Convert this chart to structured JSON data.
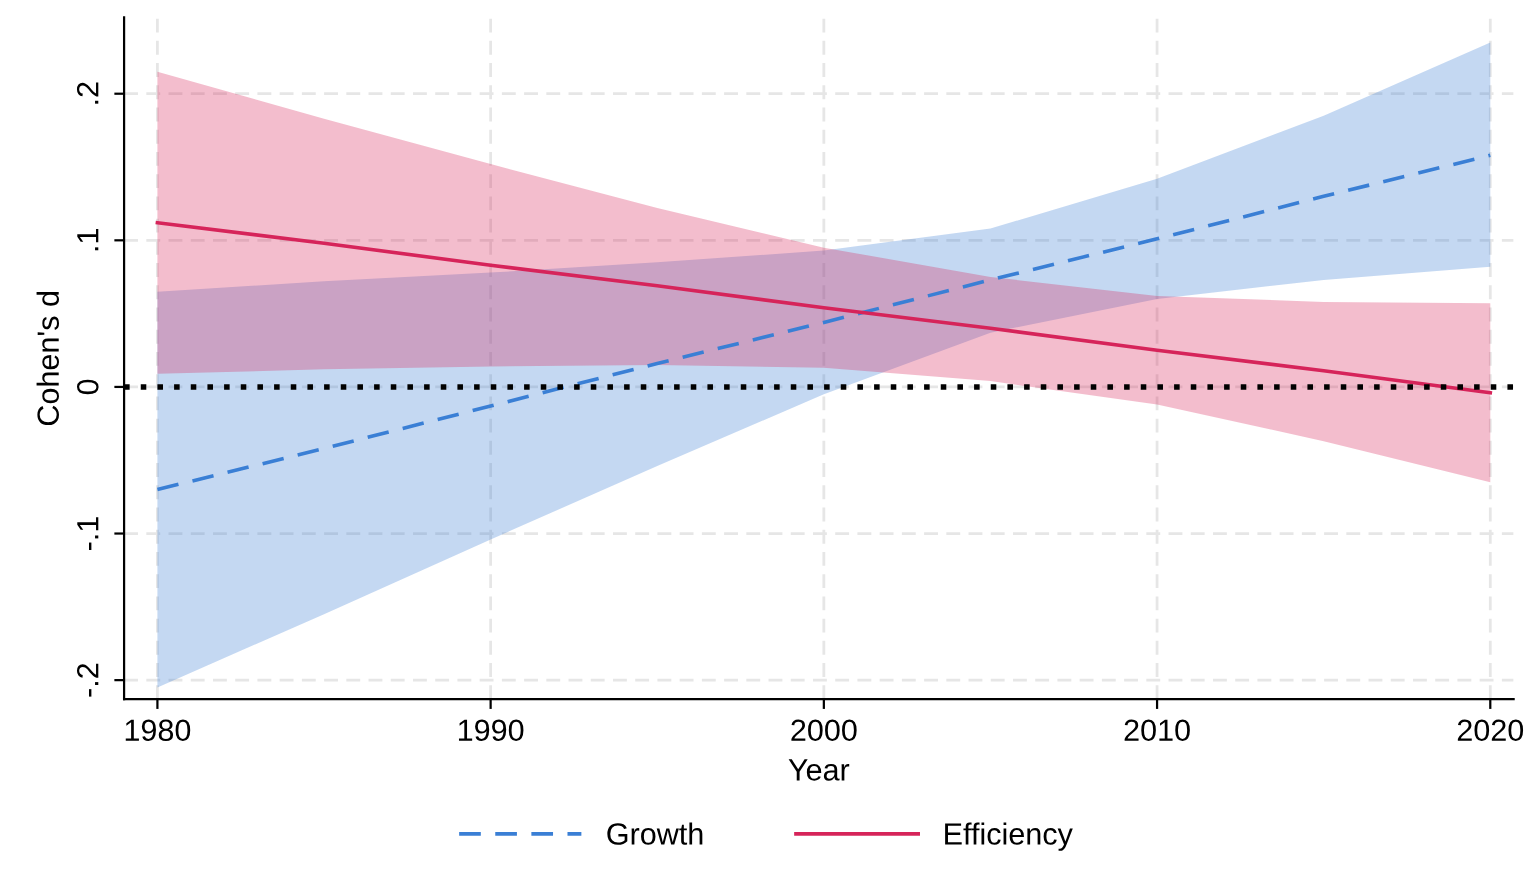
{
  "chart_data": {
    "type": "line",
    "xlabel": "Year",
    "ylabel": "Cohen's d",
    "x": [
      1980,
      1985,
      1990,
      1995,
      2000,
      2005,
      2010,
      2015,
      2020
    ],
    "series": [
      {
        "name": "Growth",
        "color": "#3a7fd5",
        "line_style": "dashed",
        "values": [
          -0.07,
          -0.042,
          -0.013,
          0.016,
          0.044,
          0.073,
          0.101,
          0.13,
          0.158
        ],
        "upper": [
          0.065,
          0.072,
          0.078,
          0.085,
          0.093,
          0.108,
          0.142,
          0.185,
          0.235
        ],
        "lower": [
          -0.205,
          -0.155,
          -0.104,
          -0.054,
          -0.005,
          0.037,
          0.06,
          0.073,
          0.082
        ]
      },
      {
        "name": "Efficiency",
        "color": "#d6245a",
        "line_style": "solid",
        "values": [
          0.112,
          0.098,
          0.083,
          0.069,
          0.054,
          0.04,
          0.025,
          0.011,
          -0.004
        ],
        "upper": [
          0.215,
          0.183,
          0.152,
          0.122,
          0.095,
          0.075,
          0.062,
          0.058,
          0.057
        ],
        "lower": [
          0.009,
          0.012,
          0.014,
          0.015,
          0.013,
          0.004,
          -0.012,
          -0.037,
          -0.065
        ]
      }
    ],
    "xlim": [
      1979,
      2020.7
    ],
    "ylim": [
      -0.213,
      0.252
    ],
    "xticks": [
      1980,
      1990,
      2000,
      2010,
      2020
    ],
    "yticks": [
      {
        "value": -0.2,
        "label": "-.2"
      },
      {
        "value": -0.1,
        "label": "-.1"
      },
      0,
      {
        "value": 0.1,
        "label": ".1"
      },
      {
        "value": 0.2,
        "label": ".2"
      }
    ],
    "ref_lines": [
      {
        "axis": "y",
        "value": 0,
        "color": "#000000",
        "line_style": "dotted"
      }
    ],
    "grid": true,
    "legend": "bottom",
    "marker": "none"
  }
}
